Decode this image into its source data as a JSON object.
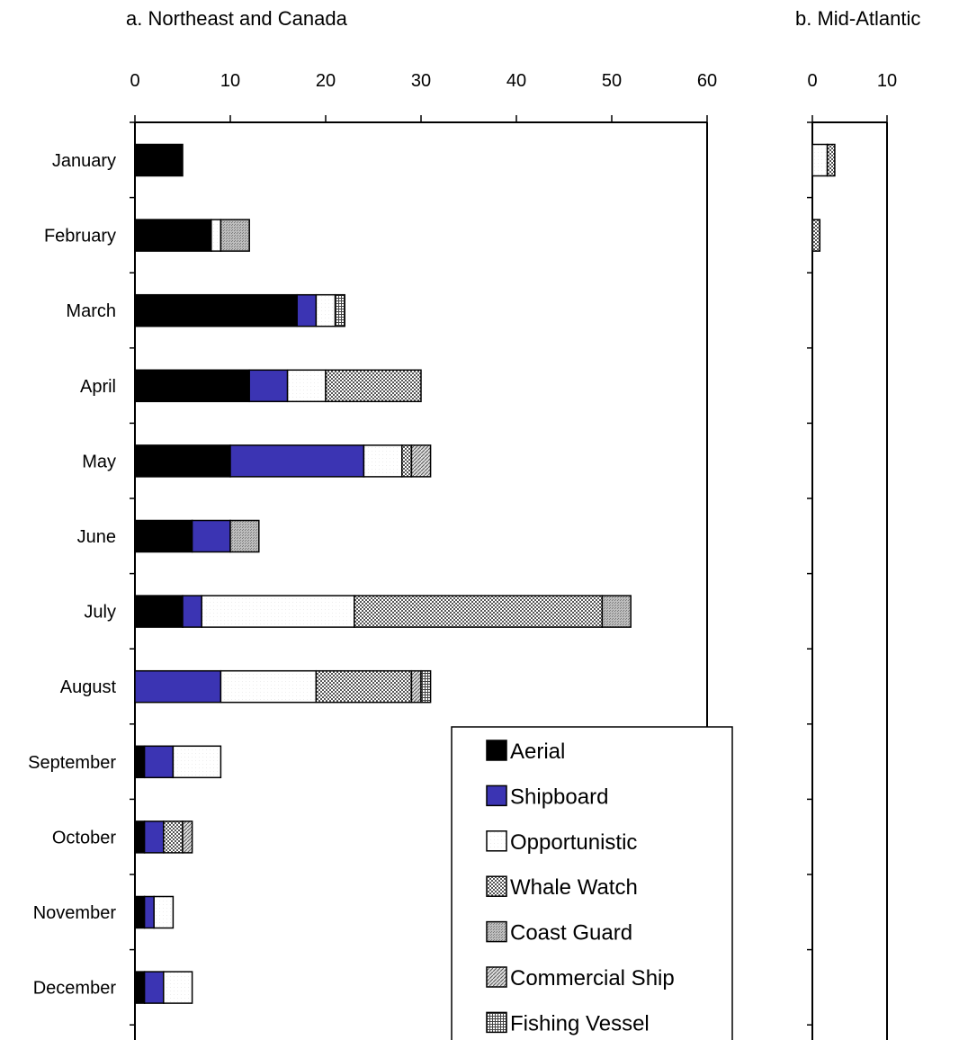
{
  "colors": {
    "Aerial": "#000000",
    "Shipboard": "#3b34b3",
    "Opportunistic": "#ffffff",
    "Whale Watch": "#9b9b9b",
    "Coast Guard": "#c4c4c4",
    "Commercial Ship": "#d8d8d8",
    "Fishing Vessel": "#ebebeb"
  },
  "legend": {
    "entries": [
      "Aerial",
      "Shipboard",
      "Opportunistic",
      "Whale Watch",
      "Coast Guard",
      "Commercial Ship",
      "Fishing Vessel"
    ]
  },
  "chart_data": [
    {
      "type": "bar",
      "orientation": "horizontal",
      "stacked": true,
      "title": "a.  Northeast and Canada",
      "categories": [
        "January",
        "February",
        "March",
        "April",
        "May",
        "June",
        "July",
        "August",
        "September",
        "October",
        "November",
        "December"
      ],
      "xlim": [
        0,
        60
      ],
      "xticks": [
        "0",
        "10",
        "20",
        "30",
        "40",
        "50",
        "60"
      ],
      "series": [
        {
          "name": "Aerial",
          "values": [
            5,
            8,
            17,
            12,
            10,
            6,
            5,
            0,
            1,
            1,
            1,
            1
          ]
        },
        {
          "name": "Shipboard",
          "values": [
            0,
            0,
            2,
            4,
            14,
            4,
            2,
            9,
            3,
            2,
            1,
            2
          ]
        },
        {
          "name": "Opportunistic",
          "values": [
            0,
            1,
            2,
            4,
            4,
            0,
            16,
            10,
            5,
            0,
            2,
            3
          ]
        },
        {
          "name": "Whale Watch",
          "values": [
            0,
            0,
            0,
            10,
            1,
            0,
            26,
            10,
            0,
            2,
            0,
            0
          ]
        },
        {
          "name": "Coast Guard",
          "values": [
            0,
            3,
            0,
            0,
            0,
            3,
            3,
            0,
            0,
            0,
            0,
            0
          ]
        },
        {
          "name": "Commercial Ship",
          "values": [
            0,
            0,
            0,
            0,
            2,
            0,
            0,
            1,
            0,
            1,
            0,
            0
          ]
        },
        {
          "name": "Fishing Vessel",
          "values": [
            0,
            0,
            1,
            0,
            0,
            0,
            0,
            1,
            0,
            0,
            0,
            0
          ]
        }
      ],
      "legend_position": "bottom-right"
    },
    {
      "type": "bar",
      "orientation": "horizontal",
      "stacked": true,
      "title": "b.  Mid-Atlantic",
      "categories": [
        "January",
        "February",
        "March",
        "April",
        "May",
        "June",
        "July",
        "August",
        "September",
        "October",
        "November",
        "December"
      ],
      "xlim": [
        0,
        10
      ],
      "xticks": [
        "0",
        "10"
      ],
      "series": [
        {
          "name": "Aerial",
          "values": [
            0,
            0,
            0,
            0,
            0,
            0,
            0,
            0,
            0,
            0,
            0,
            0
          ]
        },
        {
          "name": "Shipboard",
          "values": [
            0,
            0,
            0,
            0,
            0,
            0,
            0,
            0,
            0,
            0,
            0,
            0
          ]
        },
        {
          "name": "Opportunistic",
          "values": [
            2,
            0,
            0,
            0,
            0,
            0,
            0,
            0,
            0,
            0,
            0,
            0
          ]
        },
        {
          "name": "Whale Watch",
          "values": [
            1,
            1,
            0,
            0,
            0,
            0,
            0,
            0,
            0,
            0,
            0,
            0
          ]
        },
        {
          "name": "Coast Guard",
          "values": [
            0,
            0,
            0,
            0,
            0,
            0,
            0,
            0,
            0,
            0,
            0,
            0
          ]
        },
        {
          "name": "Commercial Ship",
          "values": [
            0,
            0,
            0,
            0,
            0,
            0,
            0,
            0,
            0,
            0,
            0,
            0
          ]
        },
        {
          "name": "Fishing Vessel",
          "values": [
            0,
            0,
            0,
            0,
            0,
            0,
            0,
            0,
            0,
            0,
            0,
            0
          ]
        }
      ]
    }
  ]
}
